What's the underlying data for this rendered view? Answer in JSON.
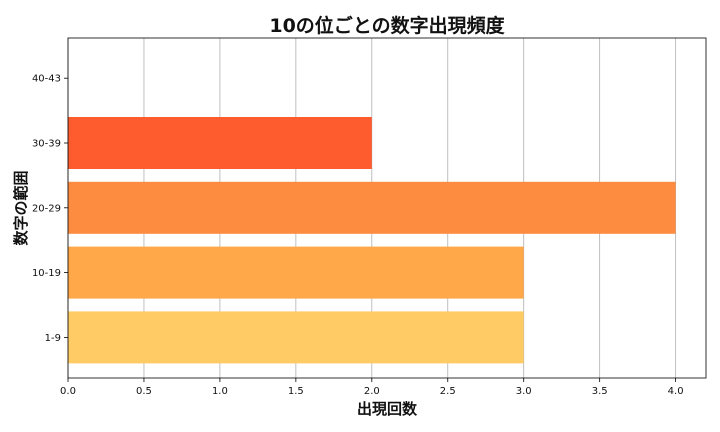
{
  "chart_data": {
    "type": "bar",
    "orientation": "horizontal",
    "title": "10の位ごとの数字出現頻度",
    "xlabel": "出現回数",
    "ylabel": "数字の範囲",
    "categories": [
      "1-9",
      "10-19",
      "20-29",
      "30-39",
      "40-43"
    ],
    "values": [
      3,
      3,
      4,
      2,
      0
    ],
    "colors": [
      "#FECB65",
      "#FEA84A",
      "#FE8C40",
      "#FE5B2F",
      "#FE3A20"
    ],
    "xlim": [
      0,
      4.2
    ],
    "xticks": [
      "0.0",
      "0.5",
      "1.0",
      "1.5",
      "2.0",
      "2.5",
      "3.0",
      "3.5",
      "4.0"
    ],
    "grid": "x-axis vertical lines"
  }
}
